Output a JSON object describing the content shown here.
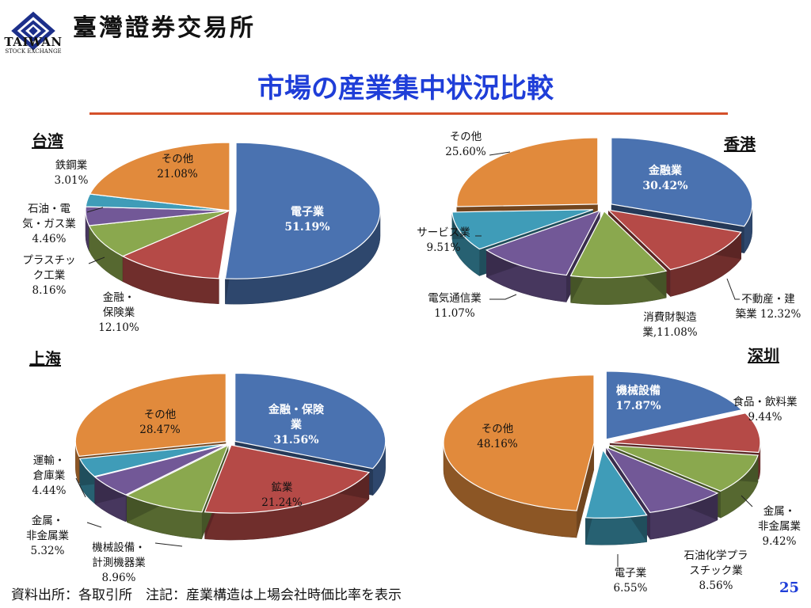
{
  "header": {
    "logo_word": "TAIWAN",
    "logo_sub": "STOCK EXCHANGE",
    "org_name": "臺灣證券交易所"
  },
  "title": "市場の産業集中状況比較",
  "footer": {
    "source_note": "資料出所：各取引所　注記：産業構造は上場会社時価比率を表示",
    "page_number": "25"
  },
  "colors": {
    "title": "#1f3ed8",
    "rule": "#d4502a",
    "blue": "#4a72b0",
    "red": "#b54a47",
    "green": "#8aa84e",
    "purple": "#725897",
    "teal": "#3f9cb8",
    "orange": "#e18a3c"
  },
  "chart_data": [
    {
      "type": "pie",
      "title": "台湾",
      "slices": [
        {
          "key": "elec",
          "lines": [
            "電子業",
            "51.19%"
          ],
          "value": 51.19,
          "color": "#4a72b0"
        },
        {
          "key": "fin",
          "lines": [
            "金融・",
            "保険業",
            "12.10%"
          ],
          "value": 12.1,
          "color": "#b54a47"
        },
        {
          "key": "plastic",
          "lines": [
            "プラスチッ",
            "ク工業",
            "8.16%"
          ],
          "value": 8.16,
          "color": "#8aa84e"
        },
        {
          "key": "petro",
          "lines": [
            "石油・電",
            "気・ガス業",
            "4.46%"
          ],
          "value": 4.46,
          "color": "#725897"
        },
        {
          "key": "steel",
          "lines": [
            "鉄鋼業",
            "3.01%"
          ],
          "value": 3.01,
          "color": "#3f9cb8"
        },
        {
          "key": "other",
          "lines": [
            "その他",
            "21.08%"
          ],
          "value": 21.08,
          "color": "#e18a3c"
        }
      ]
    },
    {
      "type": "pie",
      "title": "香港",
      "slices": [
        {
          "key": "fin",
          "lines": [
            "金融業",
            "30.42%"
          ],
          "value": 30.42,
          "color": "#4a72b0"
        },
        {
          "key": "realestate",
          "lines": [
            "不動産・建",
            "築業 12.32%"
          ],
          "value": 12.32,
          "color": "#b54a47"
        },
        {
          "key": "consumer",
          "lines": [
            "消費財製造",
            "業,11.08%"
          ],
          "value": 11.08,
          "color": "#8aa84e"
        },
        {
          "key": "telecom",
          "lines": [
            "電気通信業",
            "11.07%"
          ],
          "value": 11.07,
          "color": "#725897"
        },
        {
          "key": "service",
          "lines": [
            "サービス業",
            "9.51%"
          ],
          "value": 9.51,
          "color": "#3f9cb8"
        },
        {
          "key": "other",
          "lines": [
            "その他",
            "25.60%"
          ],
          "value": 25.6,
          "color": "#e18a3c"
        }
      ]
    },
    {
      "type": "pie",
      "title": "上海",
      "slices": [
        {
          "key": "fin",
          "lines": [
            "金融・保険",
            "業",
            "31.56%"
          ],
          "value": 31.56,
          "color": "#4a72b0"
        },
        {
          "key": "mining",
          "lines": [
            "鉱業",
            "21.24%"
          ],
          "value": 21.24,
          "color": "#b54a47"
        },
        {
          "key": "machine",
          "lines": [
            "機械設備・",
            "計測機器業",
            "8.96%"
          ],
          "value": 8.96,
          "color": "#8aa84e"
        },
        {
          "key": "metal",
          "lines": [
            "金属・",
            "非金属業",
            "5.32%"
          ],
          "value": 5.32,
          "color": "#725897"
        },
        {
          "key": "transport",
          "lines": [
            "運輸・",
            "倉庫業",
            "4.44%"
          ],
          "value": 4.44,
          "color": "#3f9cb8"
        },
        {
          "key": "other",
          "lines": [
            "その他",
            "28.47%"
          ],
          "value": 28.47,
          "color": "#e18a3c"
        }
      ]
    },
    {
      "type": "pie",
      "title": "深圳",
      "slices": [
        {
          "key": "machine",
          "lines": [
            "機械設備",
            "17.87%"
          ],
          "value": 17.87,
          "color": "#4a72b0"
        },
        {
          "key": "food",
          "lines": [
            "食品・飲料業",
            "9.44%"
          ],
          "value": 9.44,
          "color": "#b54a47"
        },
        {
          "key": "metal",
          "lines": [
            "金属・",
            "非金属業",
            "9.42%"
          ],
          "value": 9.42,
          "color": "#8aa84e"
        },
        {
          "key": "petro",
          "lines": [
            "石油化学プラ",
            "スチック業",
            "8.56%"
          ],
          "value": 8.56,
          "color": "#725897"
        },
        {
          "key": "elec",
          "lines": [
            "電子業",
            "6.55%"
          ],
          "value": 6.55,
          "color": "#3f9cb8"
        },
        {
          "key": "other",
          "lines": [
            "その他",
            "48.16%"
          ],
          "value": 48.16,
          "color": "#e18a3c"
        }
      ]
    }
  ]
}
